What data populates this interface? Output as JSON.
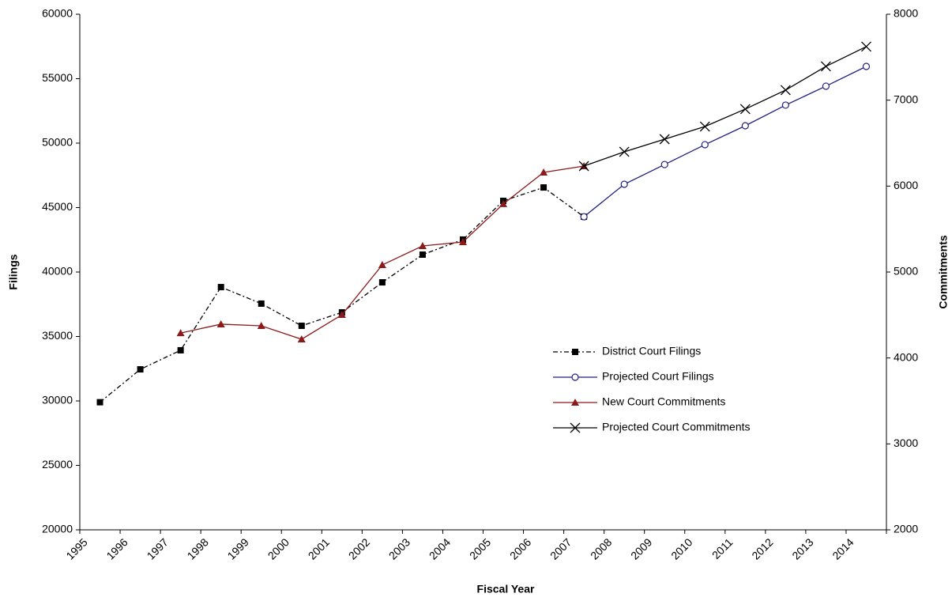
{
  "chart_data": {
    "type": "line",
    "x_label": "Fiscal Year",
    "y_label": "Filings",
    "y2_label": "Commitments",
    "categories": [
      "1995",
      "1996",
      "1997",
      "1998",
      "1999",
      "2000",
      "2001",
      "2002",
      "2003",
      "2004",
      "2005",
      "2006",
      "2007",
      "2008",
      "2009",
      "2010",
      "2011",
      "2012",
      "2013",
      "2014"
    ],
    "ylim": [
      20000,
      60000
    ],
    "yticks": [
      20000,
      25000,
      30000,
      35000,
      40000,
      45000,
      50000,
      55000,
      60000
    ],
    "y2lim": [
      2000,
      8000
    ],
    "y2ticks": [
      2000,
      3000,
      4000,
      5000,
      6000,
      7000,
      8000
    ],
    "grid": false,
    "legend": "right",
    "series": [
      {
        "name": "District Court Filings",
        "color": "#000000",
        "marker": "square",
        "dash": "dashdot",
        "values": [
          29900,
          32450,
          33930,
          38830,
          37550,
          35830,
          36870,
          39200,
          41350,
          42520,
          45520,
          46560,
          44290,
          null,
          null,
          null,
          null,
          null,
          null,
          null
        ]
      },
      {
        "name": "Projected Court Filings",
        "color": "#1f1f80",
        "marker": "circle",
        "dash": "solid",
        "values": [
          null,
          null,
          null,
          null,
          null,
          null,
          null,
          null,
          null,
          null,
          null,
          null,
          44290,
          46810,
          48340,
          49880,
          51350,
          52950,
          54420,
          55950
        ]
      },
      {
        "name": "New Court Commitments",
        "color": "#8b1a1a",
        "marker": "triangle",
        "dash": "solid",
        "axis": "y2",
        "values": [
          null,
          null,
          4290,
          4393,
          4374,
          4218,
          4503,
          5083,
          5304,
          5350,
          5792,
          6160,
          6233,
          null,
          null,
          null,
          null,
          null,
          null,
          null
        ]
      },
      {
        "name": "Projected Court Commitments",
        "color": "#000000",
        "marker": "x",
        "dash": "solid",
        "axis": "y2",
        "values": [
          null,
          null,
          null,
          null,
          null,
          null,
          null,
          null,
          null,
          null,
          null,
          null,
          6233,
          6399,
          6546,
          6693,
          6896,
          7117,
          7393,
          7623
        ]
      }
    ]
  }
}
